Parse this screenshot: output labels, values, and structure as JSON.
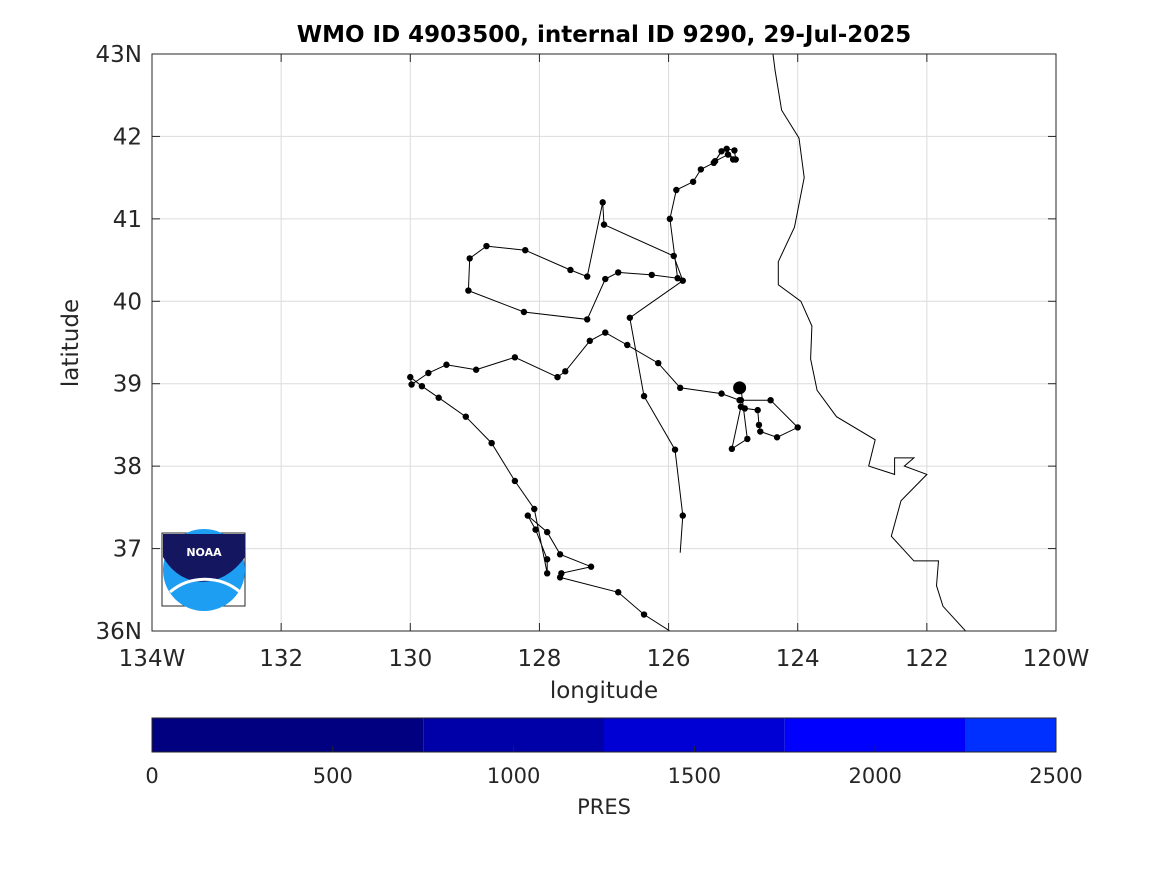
{
  "chart_data": {
    "type": "line",
    "title": "WMO ID 4903500, internal ID 9290, 29-Jul-2025",
    "xlabel": "longitude",
    "ylabel": "latitude",
    "xlim": [
      -134,
      -120
    ],
    "ylim": [
      36,
      43
    ],
    "grid": true,
    "x_ticks": [
      -134,
      -132,
      -130,
      -128,
      -126,
      -124,
      -122,
      -120
    ],
    "x_tick_labels": [
      "134W",
      "132",
      "130",
      "128",
      "126",
      "124",
      "122",
      "120W"
    ],
    "y_ticks": [
      36,
      37,
      38,
      39,
      40,
      41,
      42,
      43
    ],
    "y_tick_labels": [
      "36N",
      "37",
      "38",
      "39",
      "40",
      "41",
      "42",
      "43N"
    ],
    "float_track": {
      "x": [
        -125.94,
        -126.38,
        -126.78,
        -127.68,
        -127.66,
        -127.2,
        -127.68,
        -127.88,
        -128.18,
        -128.06,
        -127.88,
        -127.88,
        -128.08,
        -128.38,
        -128.74,
        -129.14,
        -129.56,
        -129.82,
        -130.0,
        -129.98,
        -129.72,
        -129.44,
        -128.98,
        -128.38,
        -127.72,
        -127.6,
        -127.22,
        -126.98,
        -126.64,
        -126.16,
        -125.82,
        -125.18,
        -124.9,
        -124.88,
        -124.42,
        -124.0,
        -124.32,
        -124.58,
        -124.6,
        -124.62,
        -124.82,
        -124.88,
        -125.02,
        -124.78,
        -124.88,
        -124.88
      ],
      "y": [
        35.98,
        36.2,
        36.47,
        36.65,
        36.7,
        36.78,
        36.93,
        37.2,
        37.4,
        37.23,
        36.87,
        36.7,
        37.48,
        37.82,
        38.28,
        38.6,
        38.83,
        38.97,
        39.08,
        38.99,
        39.13,
        39.23,
        39.17,
        39.32,
        39.08,
        39.15,
        39.52,
        39.62,
        39.47,
        39.25,
        38.95,
        38.88,
        38.8,
        38.8,
        38.8,
        38.47,
        38.35,
        38.42,
        38.5,
        38.68,
        38.7,
        38.72,
        38.21,
        38.33,
        38.95,
        38.95
      ],
      "x2": [
        -125.82,
        -125.78,
        -125.9,
        -126.38,
        -126.6,
        -125.78,
        -125.92,
        -127.0,
        -127.02,
        -127.26,
        -127.52,
        -128.22,
        -128.82,
        -129.08,
        -129.1,
        -128.24,
        -127.26,
        -126.98,
        -126.78,
        -126.26,
        -125.86,
        -125.98,
        -125.88,
        -125.62,
        -125.5,
        -125.3,
        -125.18,
        -125.28,
        -125.08,
        -125.0,
        -125.1,
        -124.98,
        -124.96
      ],
      "y2": [
        36.95,
        37.4,
        38.2,
        38.85,
        39.8,
        40.25,
        40.55,
        40.93,
        41.2,
        40.3,
        40.38,
        40.62,
        40.67,
        40.52,
        40.13,
        39.87,
        39.78,
        40.27,
        40.35,
        40.32,
        40.28,
        41.0,
        41.35,
        41.45,
        41.6,
        41.68,
        41.82,
        41.7,
        41.78,
        41.72,
        41.85,
        41.83,
        41.72
      ]
    },
    "coastline": {
      "x": [
        -122.5,
        -121.4,
        -121.75,
        -121.85,
        -121.82,
        -122.2,
        -122.55,
        -122.4,
        -122.0,
        -122.35,
        -122.2,
        -122.5,
        -122.5,
        -122.9,
        -122.8,
        -123.4,
        -123.7,
        -123.8,
        -123.78,
        -123.95,
        -124.3,
        -124.3,
        -124.05,
        -123.9,
        -123.98,
        -124.25,
        -124.35,
        -124.4
      ],
      "y": [
        35.6,
        36.0,
        36.3,
        36.55,
        36.85,
        36.85,
        37.15,
        37.58,
        37.9,
        38.0,
        38.1,
        38.1,
        37.9,
        38.0,
        38.32,
        38.6,
        38.92,
        39.3,
        39.7,
        40.0,
        40.2,
        40.48,
        40.9,
        41.5,
        41.98,
        42.32,
        42.8,
        43.1
      ]
    },
    "current_position": {
      "x": -124.9,
      "y": 38.95
    },
    "colorbar": {
      "label": "PRES",
      "range": [
        0,
        2500
      ],
      "tick_values": [
        0,
        500,
        1000,
        1500,
        2000,
        2500
      ],
      "tick_labels": [
        "0",
        "500",
        "1000",
        "1500",
        "2000",
        "2500"
      ],
      "bands": [
        {
          "from": 0,
          "to": 750,
          "color": "#000080"
        },
        {
          "from": 750,
          "to": 1250,
          "color": "#0000a8"
        },
        {
          "from": 1250,
          "to": 1750,
          "color": "#0000d4"
        },
        {
          "from": 1750,
          "to": 2250,
          "color": "#0000ff"
        },
        {
          "from": 2250,
          "to": 2500,
          "color": "#0030ff"
        }
      ]
    },
    "logo": {
      "text": "NOAA",
      "colors": {
        "navy": "#14165f",
        "sky": "#1e9ef2"
      }
    }
  }
}
